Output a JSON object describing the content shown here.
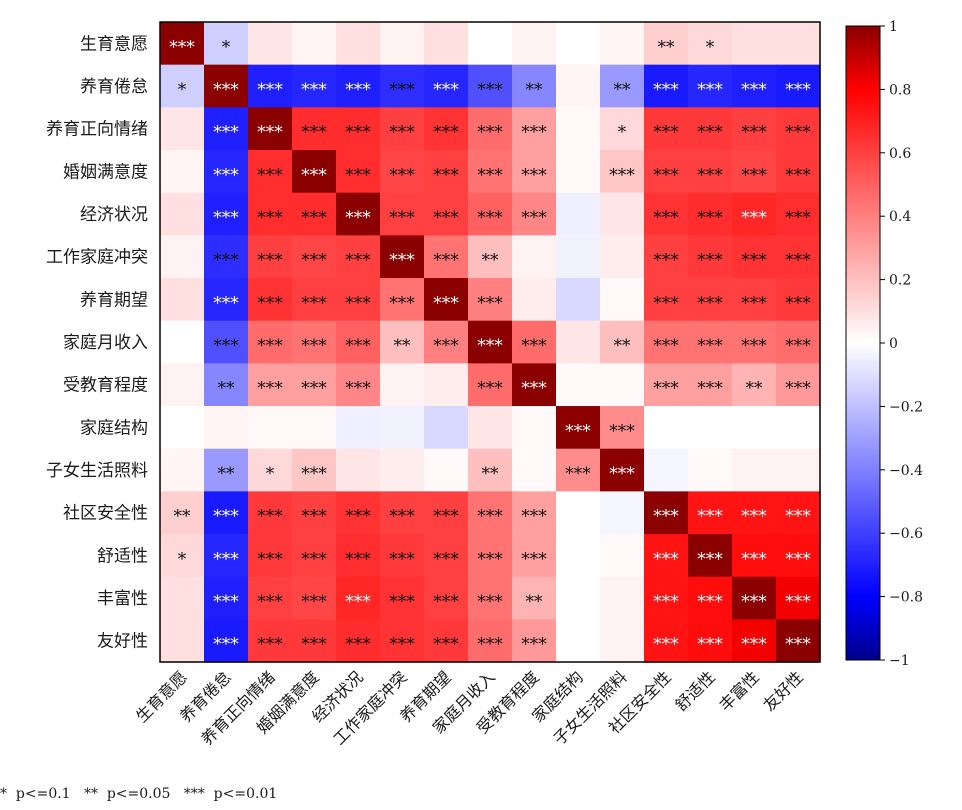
{
  "chart_data": {
    "type": "heatmap",
    "variables": [
      "生育意愿",
      "养育倦怠",
      "养育正向情绪",
      "婚姻满意度",
      "经济状况",
      "工作家庭冲突",
      "养育期望",
      "家庭月收入",
      "受教育程度",
      "家庭结构",
      "子女生活照料",
      "社区安全性",
      "舒适性",
      "丰富性",
      "友好性"
    ],
    "values": [
      [
        1,
        -0.15,
        0.08,
        0.03,
        0.1,
        0.04,
        0.1,
        0,
        0.04,
        0,
        0.03,
        0.15,
        0.12,
        0.1,
        0.1
      ],
      [
        -0.15,
        1,
        -0.7,
        -0.68,
        -0.7,
        -0.66,
        -0.68,
        -0.55,
        -0.38,
        0.03,
        -0.32,
        -0.72,
        -0.68,
        -0.7,
        -0.72
      ],
      [
        0.08,
        -0.7,
        1,
        0.66,
        0.66,
        0.6,
        0.64,
        0.46,
        0.3,
        0.02,
        0.12,
        0.62,
        0.62,
        0.6,
        0.62
      ],
      [
        0.03,
        -0.68,
        0.66,
        1,
        0.66,
        0.58,
        0.6,
        0.44,
        0.3,
        0.02,
        0.18,
        0.6,
        0.6,
        0.58,
        0.62
      ],
      [
        0.1,
        -0.7,
        0.66,
        0.66,
        1,
        0.6,
        0.6,
        0.5,
        0.38,
        -0.05,
        0.08,
        0.64,
        0.66,
        0.68,
        0.66
      ],
      [
        0.04,
        -0.66,
        0.6,
        0.58,
        0.6,
        1,
        0.44,
        0.2,
        0.04,
        -0.04,
        0.06,
        0.6,
        0.62,
        0.64,
        0.64
      ],
      [
        0.1,
        -0.68,
        0.64,
        0.6,
        0.6,
        0.44,
        1,
        0.4,
        0.06,
        -0.12,
        0.02,
        0.6,
        0.6,
        0.6,
        0.62
      ],
      [
        0,
        -0.55,
        0.46,
        0.44,
        0.5,
        0.2,
        0.4,
        1,
        0.46,
        0.08,
        0.2,
        0.44,
        0.44,
        0.44,
        0.46
      ],
      [
        0.04,
        -0.38,
        0.3,
        0.3,
        0.38,
        0.04,
        0.06,
        0.46,
        1,
        0.02,
        0.02,
        0.3,
        0.3,
        0.24,
        0.32
      ],
      [
        0,
        0.03,
        0.02,
        0.02,
        -0.05,
        -0.04,
        -0.12,
        0.08,
        0.02,
        1,
        0.36,
        0,
        0,
        0,
        0
      ],
      [
        0.03,
        -0.32,
        0.12,
        0.18,
        0.08,
        0.06,
        0.02,
        0.2,
        0.02,
        0.36,
        1,
        -0.03,
        0.02,
        0.04,
        0.04
      ],
      [
        0.15,
        -0.72,
        0.62,
        0.6,
        0.64,
        0.6,
        0.6,
        0.44,
        0.3,
        0,
        -0.03,
        1,
        0.74,
        0.74,
        0.74
      ],
      [
        0.12,
        -0.68,
        0.62,
        0.6,
        0.66,
        0.62,
        0.6,
        0.44,
        0.3,
        0,
        0.02,
        0.74,
        1,
        0.76,
        0.76
      ],
      [
        0.1,
        -0.7,
        0.6,
        0.58,
        0.68,
        0.64,
        0.6,
        0.44,
        0.24,
        0,
        0.04,
        0.74,
        0.76,
        1,
        0.82
      ],
      [
        0.1,
        -0.72,
        0.62,
        0.62,
        0.66,
        0.64,
        0.62,
        0.46,
        0.32,
        0,
        0.04,
        0.74,
        0.76,
        0.82,
        1
      ]
    ],
    "significance": [
      [
        "***",
        "*",
        "",
        "",
        "",
        "",
        "",
        "",
        "",
        "",
        "",
        "**",
        "*",
        "",
        ""
      ],
      [
        "*",
        "***",
        "***",
        "***",
        "***",
        "***",
        "***",
        "***",
        "**",
        "",
        "**",
        "***",
        "***",
        "***",
        "***"
      ],
      [
        "",
        "***",
        "***",
        "***",
        "***",
        "***",
        "***",
        "***",
        "***",
        "",
        "*",
        "***",
        "***",
        "***",
        "***"
      ],
      [
        "",
        "***",
        "***",
        "***",
        "***",
        "***",
        "***",
        "***",
        "***",
        "",
        "***",
        "***",
        "***",
        "***",
        "***"
      ],
      [
        "",
        "***",
        "***",
        "***",
        "***",
        "***",
        "***",
        "***",
        "***",
        "",
        "",
        "***",
        "***",
        "***",
        "***"
      ],
      [
        "",
        "***",
        "***",
        "***",
        "***",
        "***",
        "***",
        "**",
        "",
        "",
        "",
        "***",
        "***",
        "***",
        "***"
      ],
      [
        "",
        "***",
        "***",
        "***",
        "***",
        "***",
        "***",
        "***",
        "",
        "",
        "",
        "***",
        "***",
        "***",
        "***"
      ],
      [
        "",
        "***",
        "***",
        "***",
        "***",
        "**",
        "***",
        "***",
        "***",
        "",
        "**",
        "***",
        "***",
        "***",
        "***"
      ],
      [
        "",
        "**",
        "***",
        "***",
        "***",
        "",
        "",
        "***",
        "***",
        "",
        "",
        "***",
        "***",
        "**",
        "***"
      ],
      [
        "",
        "",
        "",
        "",
        "",
        "",
        "",
        "",
        "",
        "***",
        "***",
        "",
        "",
        "",
        ""
      ],
      [
        "",
        "**",
        "*",
        "***",
        "",
        "",
        "",
        "**",
        "",
        "***",
        "***",
        "",
        "",
        "",
        ""
      ],
      [
        "**",
        "***",
        "***",
        "***",
        "***",
        "***",
        "***",
        "***",
        "***",
        "",
        "",
        "***",
        "***",
        "***",
        "***"
      ],
      [
        "*",
        "***",
        "***",
        "***",
        "***",
        "***",
        "***",
        "***",
        "***",
        "",
        "",
        "***",
        "***",
        "***",
        "***"
      ],
      [
        "",
        "***",
        "***",
        "***",
        "***",
        "***",
        "***",
        "***",
        "**",
        "",
        "",
        "***",
        "***",
        "***",
        "***"
      ],
      [
        "",
        "***",
        "***",
        "***",
        "***",
        "***",
        "***",
        "***",
        "***",
        "",
        "",
        "***",
        "***",
        "***",
        "***"
      ]
    ],
    "colorbar": {
      "range": [
        -1,
        1
      ],
      "ticks": [
        1,
        0.8,
        0.6,
        0.4,
        0.2,
        0,
        -0.2,
        -0.4,
        -0.6,
        -0.8,
        -1
      ],
      "tick_labels": [
        "1",
        "0.8",
        "0.6",
        "0.4",
        "0.2",
        "0",
        "−0.2",
        "−0.4",
        "−0.6",
        "−0.8",
        "−1"
      ],
      "colors": {
        "low": "#00008b",
        "mid_low": "#0000ff",
        "mid": "#ffffff",
        "mid_high": "#ff0000",
        "high": "#8b0000"
      }
    },
    "legend_note": "*  p<=0.1   **  p<=0.05   ***  p<=0.01"
  }
}
